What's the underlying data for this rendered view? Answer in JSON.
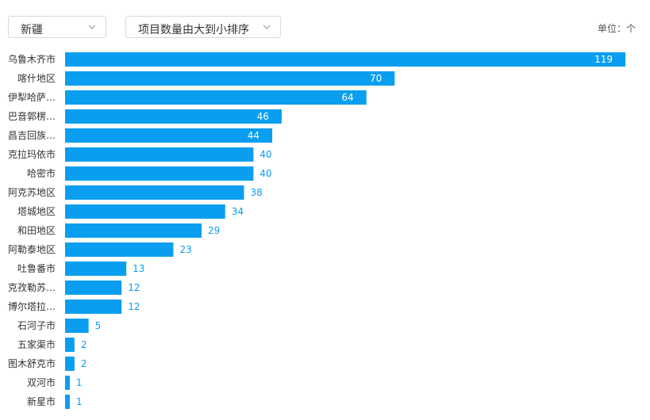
{
  "filters": {
    "region": {
      "selected": "新疆"
    },
    "sort": {
      "selected": "项目数量由大到小排序"
    }
  },
  "unit_label": "单位：个",
  "colors": {
    "bar": "#0a9ef0",
    "inside_label": "#ffffff",
    "outside_label": "#0a9ef0",
    "axis_label": "#333333"
  },
  "icons": {
    "dropdown": "chevron-down-icon"
  },
  "chart_data": {
    "type": "bar",
    "orientation": "horizontal",
    "categories": [
      "乌鲁木齐市",
      "喀什地区",
      "伊犁哈萨…",
      "巴音郭楞…",
      "昌吉回族…",
      "克拉玛依市",
      "哈密市",
      "阿克苏地区",
      "塔城地区",
      "和田地区",
      "阿勒泰地区",
      "吐鲁番市",
      "克孜勒苏…",
      "博尔塔拉…",
      "石河子市",
      "五家渠市",
      "图木舒克市",
      "双河市",
      "新星市"
    ],
    "values": [
      119,
      70,
      64,
      46,
      44,
      40,
      40,
      38,
      34,
      29,
      23,
      13,
      12,
      12,
      5,
      2,
      2,
      1,
      1
    ],
    "xlim": [
      0,
      119
    ],
    "grid": false,
    "legend": "none"
  }
}
